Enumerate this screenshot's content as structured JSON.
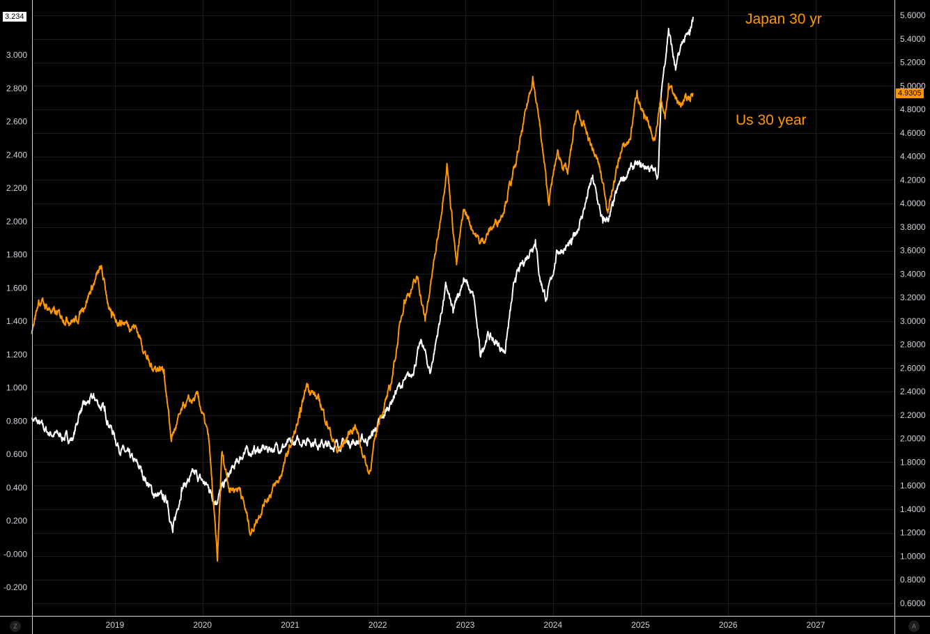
{
  "chart_data": {
    "type": "line",
    "title": "",
    "xlabel": "",
    "x_ticks": [
      "2019",
      "2020",
      "2021",
      "2022",
      "2023",
      "2024",
      "2025",
      "2026",
      "2027"
    ],
    "xlim": [
      2018.05,
      2028.0
    ],
    "left_axis": {
      "ylim": [
        -0.35,
        3.27
      ],
      "ticks": [
        "3.000",
        "2.800",
        "2.600",
        "2.400",
        "2.200",
        "2.000",
        "1.800",
        "1.600",
        "1.400",
        "1.200",
        "1.000",
        "0.800",
        "0.600",
        "0.400",
        "0.200",
        "-0.000",
        "-0.200"
      ],
      "tick_values": [
        3.0,
        2.8,
        2.6,
        2.4,
        2.2,
        2.0,
        1.8,
        1.6,
        1.4,
        1.2,
        1.0,
        0.8,
        0.6,
        0.4,
        0.2,
        0.0,
        -0.2
      ],
      "last_value_label": "3.234"
    },
    "right_axis": {
      "ylim": [
        0.5,
        5.73
      ],
      "ticks": [
        "5.6000",
        "5.4000",
        "5.2000",
        "5.0000",
        "4.8000",
        "4.6000",
        "4.4000",
        "4.2000",
        "4.0000",
        "3.8000",
        "3.6000",
        "3.4000",
        "3.2000",
        "3.0000",
        "2.8000",
        "2.6000",
        "2.4000",
        "2.2000",
        "2.0000",
        "1.8000",
        "1.6000",
        "1.4000",
        "1.2000",
        "1.0000",
        "0.8000",
        "0.6000"
      ],
      "tick_values": [
        5.6,
        5.4,
        5.2,
        5.0,
        4.8,
        4.6,
        4.4,
        4.2,
        4.0,
        3.8,
        3.6,
        3.4,
        3.2,
        3.0,
        2.8,
        2.6,
        2.4,
        2.2,
        2.0,
        1.8,
        1.6,
        1.4,
        1.2,
        1.0,
        0.8,
        0.6
      ],
      "last_value_label": "4.9305"
    },
    "series": [
      {
        "name": "Japan 30 yr",
        "axis": "left",
        "color": "#ffffff",
        "points": [
          [
            2018.05,
            0.82
          ],
          [
            2018.24,
            0.73
          ],
          [
            2018.52,
            0.69
          ],
          [
            2018.6,
            0.86
          ],
          [
            2018.76,
            0.94
          ],
          [
            2018.88,
            0.86
          ],
          [
            2019.04,
            0.65
          ],
          [
            2019.28,
            0.52
          ],
          [
            2019.44,
            0.36
          ],
          [
            2019.6,
            0.32
          ],
          [
            2019.66,
            0.13
          ],
          [
            2019.76,
            0.4
          ],
          [
            2019.91,
            0.48
          ],
          [
            2020.07,
            0.4
          ],
          [
            2020.15,
            0.32
          ],
          [
            2020.31,
            0.48
          ],
          [
            2020.47,
            0.61
          ],
          [
            2020.71,
            0.63
          ],
          [
            2020.95,
            0.65
          ],
          [
            2021.19,
            0.69
          ],
          [
            2021.43,
            0.65
          ],
          [
            2021.66,
            0.67
          ],
          [
            2021.9,
            0.69
          ],
          [
            2022.06,
            0.82
          ],
          [
            2022.22,
            0.99
          ],
          [
            2022.38,
            1.07
          ],
          [
            2022.5,
            1.28
          ],
          [
            2022.6,
            1.09
          ],
          [
            2022.78,
            1.61
          ],
          [
            2022.86,
            1.45
          ],
          [
            2022.98,
            1.66
          ],
          [
            2023.1,
            1.53
          ],
          [
            2023.17,
            1.19
          ],
          [
            2023.25,
            1.32
          ],
          [
            2023.45,
            1.22
          ],
          [
            2023.57,
            1.66
          ],
          [
            2023.8,
            1.89
          ],
          [
            2023.85,
            1.66
          ],
          [
            2023.93,
            1.53
          ],
          [
            2024.05,
            1.82
          ],
          [
            2024.21,
            1.86
          ],
          [
            2024.33,
            2.03
          ],
          [
            2024.45,
            2.26
          ],
          [
            2024.57,
            1.99
          ],
          [
            2024.65,
            2.03
          ],
          [
            2024.77,
            2.24
          ],
          [
            2024.92,
            2.33
          ],
          [
            2025.08,
            2.33
          ],
          [
            2025.2,
            2.28
          ],
          [
            2025.24,
            2.79
          ],
          [
            2025.32,
            3.16
          ],
          [
            2025.4,
            2.91
          ],
          [
            2025.48,
            3.08
          ],
          [
            2025.56,
            3.12
          ],
          [
            2025.6,
            3.23
          ]
        ]
      },
      {
        "name": "Us 30 year",
        "axis": "right",
        "color": "#ff9800",
        "points": [
          [
            2018.05,
            2.89
          ],
          [
            2018.13,
            3.18
          ],
          [
            2018.32,
            3.06
          ],
          [
            2018.56,
            3.0
          ],
          [
            2018.84,
            3.45
          ],
          [
            2018.96,
            3.03
          ],
          [
            2019.24,
            2.95
          ],
          [
            2019.4,
            2.62
          ],
          [
            2019.56,
            2.59
          ],
          [
            2019.64,
            2.0
          ],
          [
            2019.8,
            2.29
          ],
          [
            2019.95,
            2.35
          ],
          [
            2020.07,
            2.0
          ],
          [
            2020.17,
            0.96
          ],
          [
            2020.22,
            1.88
          ],
          [
            2020.31,
            1.58
          ],
          [
            2020.43,
            1.58
          ],
          [
            2020.55,
            1.2
          ],
          [
            2020.71,
            1.47
          ],
          [
            2020.87,
            1.64
          ],
          [
            2021.11,
            2.18
          ],
          [
            2021.19,
            2.47
          ],
          [
            2021.35,
            2.29
          ],
          [
            2021.54,
            1.88
          ],
          [
            2021.74,
            2.12
          ],
          [
            2021.9,
            1.7
          ],
          [
            2022.02,
            2.18
          ],
          [
            2022.14,
            2.41
          ],
          [
            2022.3,
            3.18
          ],
          [
            2022.46,
            3.36
          ],
          [
            2022.54,
            3.0
          ],
          [
            2022.7,
            3.78
          ],
          [
            2022.79,
            4.34
          ],
          [
            2022.9,
            3.48
          ],
          [
            2022.98,
            3.95
          ],
          [
            2023.17,
            3.66
          ],
          [
            2023.41,
            3.9
          ],
          [
            2023.57,
            4.31
          ],
          [
            2023.77,
            5.08
          ],
          [
            2023.85,
            4.66
          ],
          [
            2023.95,
            4.01
          ],
          [
            2024.05,
            4.43
          ],
          [
            2024.17,
            4.25
          ],
          [
            2024.27,
            4.78
          ],
          [
            2024.41,
            4.55
          ],
          [
            2024.53,
            4.31
          ],
          [
            2024.63,
            3.95
          ],
          [
            2024.77,
            4.43
          ],
          [
            2024.88,
            4.55
          ],
          [
            2024.96,
            4.96
          ],
          [
            2025.04,
            4.72
          ],
          [
            2025.16,
            4.55
          ],
          [
            2025.23,
            4.9
          ],
          [
            2025.28,
            4.72
          ],
          [
            2025.32,
            5.02
          ],
          [
            2025.44,
            4.84
          ],
          [
            2025.56,
            4.9
          ],
          [
            2025.6,
            4.93
          ]
        ]
      }
    ],
    "annotations": [
      "Japan 30 yr",
      "Us 30 year"
    ],
    "corner_buttons": [
      "Z",
      "A"
    ],
    "grid": true
  }
}
